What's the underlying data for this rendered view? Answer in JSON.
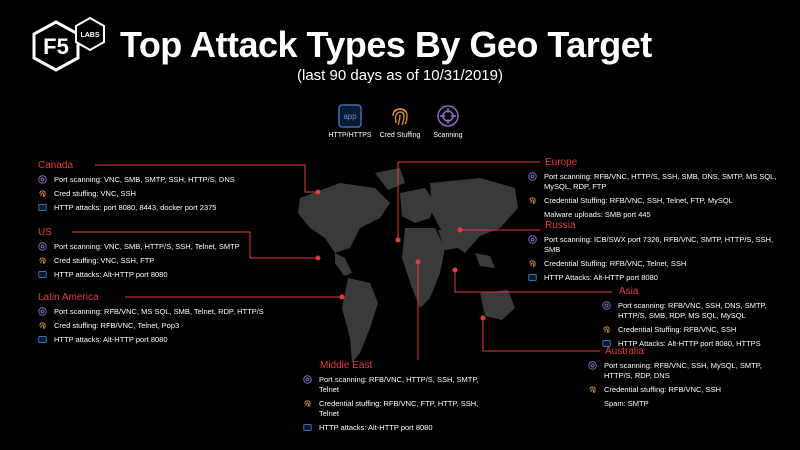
{
  "header": {
    "logo_f5": "F5",
    "logo_labs": "LABS",
    "title": "Top Attack Types By Geo Target",
    "subtitle": "(last 90 days as of 10/31/2019)"
  },
  "legend": [
    {
      "key": "app",
      "icon_text": "app",
      "label": "HTTP/HTTPS"
    },
    {
      "key": "cred",
      "label": "Cred Stuffing"
    },
    {
      "key": "scan",
      "label": "Scanning"
    }
  ],
  "colors": {
    "accent": "#e8383d",
    "app": "#3c6fb4",
    "cred": "#d98a2e",
    "scan": "#8b6bc8"
  },
  "regions": {
    "canada": {
      "name": "Canada",
      "rows": [
        {
          "icon": "scan",
          "text": "Port scanning:  VNC, SMB, SMTP, SSH, HTTP/S, DNS"
        },
        {
          "icon": "cred",
          "text": "Cred stuffing:  VNC, SSH"
        },
        {
          "icon": "app",
          "text": "HTTP attacks: port 8080,  8443,  docker port  2375"
        }
      ]
    },
    "us": {
      "name": "US",
      "rows": [
        {
          "icon": "scan",
          "text": "Port scanning:  VNC, SMB, HTTP/S, SSH, Telnet, SMTP"
        },
        {
          "icon": "cred",
          "text": "Cred stuffing:  VNC, SSH, FTP"
        },
        {
          "icon": "app",
          "text": "HTTP attacks:  Alt-HTTP port  8080"
        }
      ]
    },
    "latam": {
      "name": "Latin America",
      "rows": [
        {
          "icon": "scan",
          "text": "Port scanning:  RFB/VNC, MS SQL, SMB, Telnet, RDP, HTTP/S"
        },
        {
          "icon": "cred",
          "text": "Cred stuffing:  RFB/VNC, Telnet, Pop3"
        },
        {
          "icon": "app",
          "text": "HTTP attacks:  Alt-HTTP port  8080"
        }
      ]
    },
    "middle_east": {
      "name": "Middle East",
      "rows": [
        {
          "icon": "scan",
          "text": "Port scanning:  RFB/VNC, HTTP/S,  SSH, SMTP, Telnet"
        },
        {
          "icon": "cred",
          "text": "Credential  stuffing: RFB/VNC, FTP, HTTP, SSH, Telnet"
        },
        {
          "icon": "app",
          "text": "HTTP attacks:  Alt-HTTP port  8080"
        }
      ]
    },
    "europe": {
      "name": "Europe",
      "rows": [
        {
          "icon": "scan",
          "text": "Port scanning:  RFB/VNC, HTTP/S,  SSH, SMB, DNS, SMTP,  MS SQL, MySQL, RDP, FTP"
        },
        {
          "icon": "cred",
          "text": "Credential  Stuffing:  RFB/VNC, SSH, Telnet, FTP, MySQL"
        },
        {
          "icon": "none",
          "text": "Malware uploads:  SMB port 445"
        }
      ]
    },
    "russia": {
      "name": "Russia",
      "rows": [
        {
          "icon": "scan",
          "text": "Port scanning:  ICB/SWX port 7326,  RFB/VNC, SMTP, HTTP/S, SSH, SMB"
        },
        {
          "icon": "cred",
          "text": "Credential  Stuffing:  RFB/VNC, Telnet, SSH"
        },
        {
          "icon": "app",
          "text": "HTTP Attacks:  Alt-HTTP port 8080"
        }
      ]
    },
    "asia": {
      "name": "Asia",
      "rows": [
        {
          "icon": "scan",
          "text": "Port scanning:  RFB/VNC, SSH, DNS, SMTP, HTTP/S, SMB, RDP, MS SQL, MySQL"
        },
        {
          "icon": "cred",
          "text": "Credential  Stuffing:  RFB/VNC, SSH"
        },
        {
          "icon": "app",
          "text": "HTTP Attacks:  Alt-HTTP port 8080,  HTTPS"
        }
      ]
    },
    "australia": {
      "name": "Australia",
      "rows": [
        {
          "icon": "scan",
          "text": "Port scanning:  RFB/VNC, SSH, MySQL, SMTP, HTTP/S, RDP, DNS"
        },
        {
          "icon": "cred",
          "text": "Credential  stuffing:  RFB/VNC, SSH"
        },
        {
          "icon": "none",
          "text": "Spam:  SMTP"
        }
      ]
    }
  }
}
